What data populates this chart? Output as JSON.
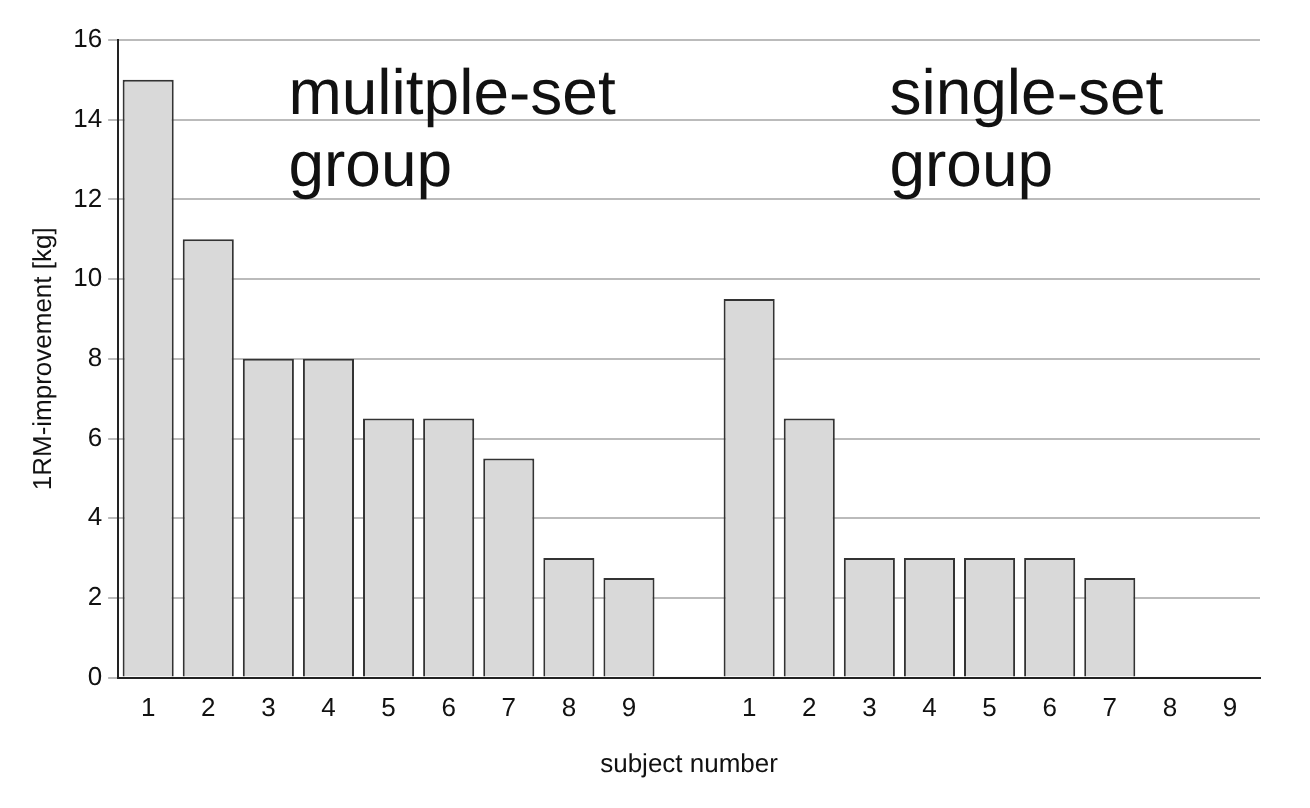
{
  "chart_data": {
    "type": "bar",
    "xlabel": "subject number",
    "ylabel": "1RM-improvement [kg]",
    "categories": [
      "1",
      "2",
      "3",
      "4",
      "5",
      "6",
      "7",
      "8",
      "9",
      null,
      "1",
      "2",
      "3",
      "4",
      "5",
      "6",
      "7",
      "8",
      "9"
    ],
    "values": [
      15,
      11,
      8,
      8,
      6.5,
      6.5,
      5.5,
      3,
      2.5,
      null,
      9.5,
      6.5,
      3,
      3,
      3,
      3,
      2.5,
      0,
      0
    ],
    "color": "#d9d9d9",
    "ylim": [
      0,
      16
    ],
    "yticks": [
      0,
      2,
      4,
      6,
      8,
      10,
      12,
      14,
      16
    ],
    "grid": "y",
    "annotations": [
      "mulitple-set group",
      "single-set group"
    ]
  }
}
